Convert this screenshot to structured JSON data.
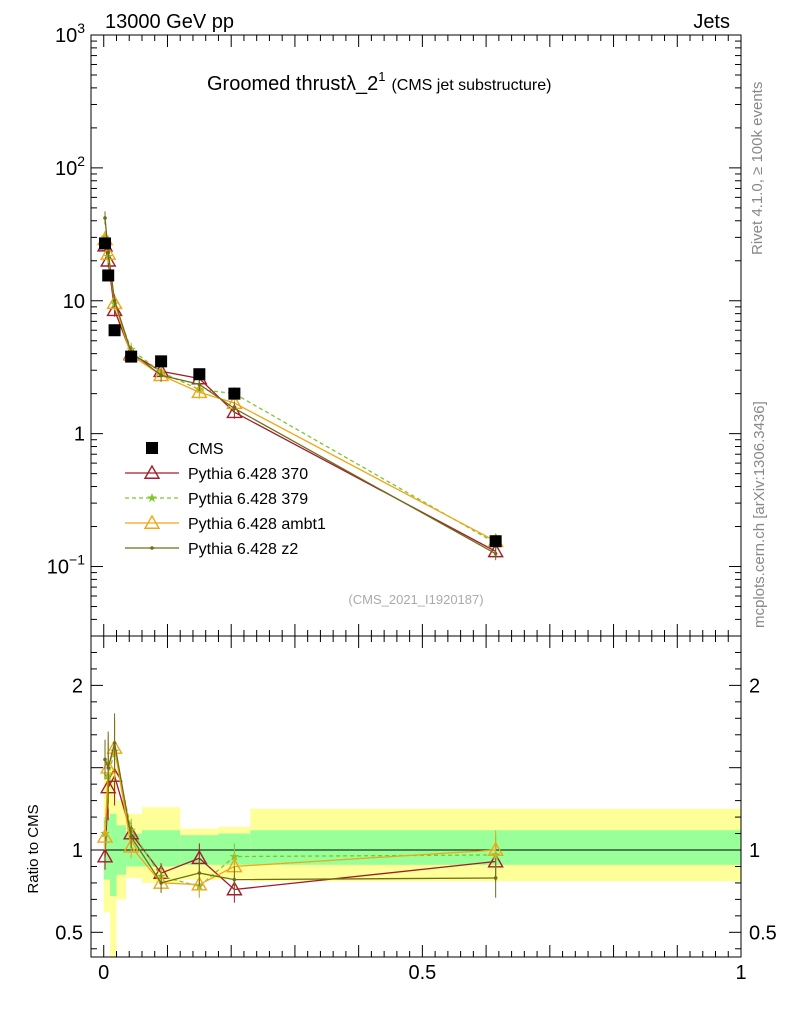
{
  "header": {
    "left": "13000 GeV pp",
    "right": "Jets",
    "title_main": "Groomed thrust",
    "title_symbol": "λ_2",
    "title_sup": "1",
    "title_sub": "(CMS jet substructure)",
    "side_top": "Rivet 4.1.0, ≥ 100k events",
    "side_bottom": "mcplots.cern.ch [arXiv:1306.3436]",
    "analysis": "(CMS_2021_I1920187)"
  },
  "chart_data": {
    "type": "line",
    "main": {
      "yscale": "log",
      "ylim": [
        0.03,
        1000
      ],
      "xlim": [
        -0.02,
        1.0
      ],
      "ytick_labels": [
        "10^-1",
        "1",
        "10",
        "10^2",
        "10^3"
      ],
      "ytick_values": [
        0.1,
        1,
        10,
        100,
        1000
      ]
    },
    "ratio": {
      "ylabel": "Ratio to CMS",
      "ylim": [
        0.35,
        2.3
      ],
      "ytick_labels": [
        "0.5",
        "1",
        "2"
      ],
      "ytick_values": [
        0.5,
        1,
        2
      ],
      "xtick_labels": [
        "0",
        "0.5",
        "1"
      ],
      "xtick_values": [
        0,
        0.5,
        1
      ],
      "bands": [
        {
          "x0": 0.0,
          "x1": 0.01,
          "g": [
            0.82,
            1.2
          ],
          "y": [
            0.62,
            1.45
          ]
        },
        {
          "x0": 0.01,
          "x1": 0.02,
          "g": [
            0.72,
            1.22
          ],
          "y": [
            0.35,
            1.5
          ]
        },
        {
          "x0": 0.02,
          "x1": 0.035,
          "g": [
            0.85,
            1.15
          ],
          "y": [
            0.7,
            1.3
          ]
        },
        {
          "x0": 0.035,
          "x1": 0.06,
          "g": [
            0.9,
            1.1
          ],
          "y": [
            0.83,
            1.22
          ]
        },
        {
          "x0": 0.06,
          "x1": 0.12,
          "g": [
            0.9,
            1.12
          ],
          "y": [
            0.8,
            1.26
          ]
        },
        {
          "x0": 0.12,
          "x1": 0.18,
          "g": [
            0.91,
            1.09
          ],
          "y": [
            0.82,
            1.13
          ]
        },
        {
          "x0": 0.18,
          "x1": 0.23,
          "g": [
            0.91,
            1.1
          ],
          "y": [
            0.82,
            1.14
          ]
        },
        {
          "x0": 0.23,
          "x1": 1.0,
          "g": [
            0.91,
            1.12
          ],
          "y": [
            0.81,
            1.25
          ]
        }
      ]
    },
    "series": [
      {
        "name": "CMS",
        "marker": "square",
        "color": "#000000",
        "x": [
          0.002,
          0.007,
          0.017,
          0.043,
          0.09,
          0.15,
          0.205,
          0.615
        ],
        "y": [
          27,
          15.5,
          6.0,
          3.8,
          3.5,
          2.8,
          2.0,
          0.155
        ]
      },
      {
        "name": "Pythia 6.428 370",
        "marker": "triangle-open",
        "color": "#a11d2c",
        "dash": "",
        "x": [
          0.002,
          0.007,
          0.017,
          0.043,
          0.09,
          0.15,
          0.205,
          0.615
        ],
        "y": [
          26,
          20,
          8.5,
          4.0,
          2.95,
          2.6,
          1.45,
          0.13
        ],
        "ratio": [
          0.96,
          1.38,
          1.45,
          1.1,
          0.86,
          0.95,
          0.76,
          0.93
        ],
        "err": [
          0.08,
          0.2,
          0.18,
          0.07,
          0.06,
          0.09,
          0.08,
          0.12
        ]
      },
      {
        "name": "Pythia 6.428 379",
        "marker": "star",
        "color": "#7ec62b",
        "dash": "4,3",
        "x": [
          0.002,
          0.007,
          0.017,
          0.043,
          0.09,
          0.15,
          0.205,
          0.615
        ],
        "y": [
          30,
          21.5,
          9.5,
          4.3,
          2.9,
          2.15,
          2.0,
          0.15
        ],
        "ratio": [
          1.1,
          1.45,
          1.6,
          1.12,
          0.84,
          0.78,
          0.96,
          0.97
        ],
        "err": [
          0.08,
          0.2,
          0.18,
          0.07,
          0.06,
          0.07,
          0.08,
          0.12
        ]
      },
      {
        "name": "Pythia 6.428 ambt1",
        "marker": "triangle-open",
        "color": "#f2a516",
        "dash": "",
        "x": [
          0.002,
          0.007,
          0.017,
          0.043,
          0.09,
          0.15,
          0.205,
          0.615
        ],
        "y": [
          29,
          22.5,
          9.6,
          3.9,
          2.75,
          2.05,
          1.7,
          0.155
        ],
        "ratio": [
          1.08,
          1.5,
          1.62,
          1.02,
          0.8,
          0.79,
          0.9,
          1.0
        ],
        "err": [
          0.08,
          0.2,
          0.18,
          0.07,
          0.06,
          0.07,
          0.08,
          0.12
        ]
      },
      {
        "name": "Pythia 6.428 z2",
        "marker": "dot",
        "color": "#6e6e18",
        "dash": "",
        "x": [
          0.002,
          0.007,
          0.017,
          0.043,
          0.09,
          0.15,
          0.205,
          0.615
        ],
        "y": [
          42,
          23,
          10,
          4.1,
          2.75,
          2.35,
          1.55,
          0.125
        ],
        "ratio": [
          1.55,
          1.5,
          1.65,
          1.08,
          0.8,
          0.86,
          0.82,
          0.83
        ],
        "err": [
          0.12,
          0.22,
          0.18,
          0.07,
          0.06,
          0.08,
          0.08,
          0.12
        ]
      }
    ]
  }
}
